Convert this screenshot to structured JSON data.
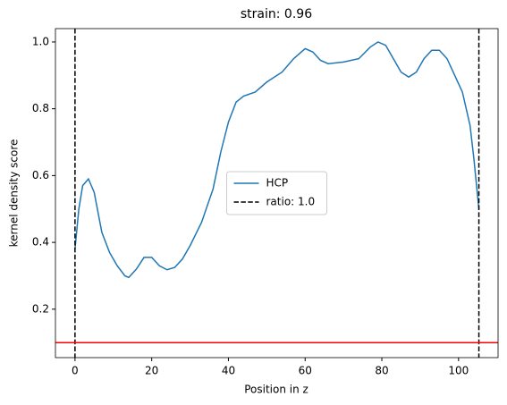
{
  "chart_data": {
    "type": "line",
    "title": "strain: 0.96",
    "x_label": "Position in z",
    "y_label": "kernel density score",
    "series": [
      {
        "name": "HCP",
        "color": "#1f77b4",
        "x": [
          0,
          1,
          2,
          3.5,
          5,
          7,
          9,
          11,
          13,
          14,
          16,
          18,
          20,
          22,
          24,
          26,
          28,
          30,
          33,
          36,
          38,
          40,
          42,
          44,
          47,
          50,
          54,
          57,
          60,
          62,
          64,
          66,
          70,
          74,
          77,
          79,
          81,
          83,
          85,
          87,
          89,
          91,
          93,
          95,
          97,
          99,
          101,
          103,
          104,
          105.3
        ],
        "values": [
          0.38,
          0.5,
          0.57,
          0.59,
          0.55,
          0.43,
          0.37,
          0.33,
          0.3,
          0.295,
          0.32,
          0.355,
          0.355,
          0.33,
          0.318,
          0.325,
          0.35,
          0.39,
          0.46,
          0.56,
          0.67,
          0.76,
          0.82,
          0.838,
          0.85,
          0.88,
          0.91,
          0.95,
          0.98,
          0.97,
          0.945,
          0.935,
          0.94,
          0.95,
          0.985,
          1.0,
          0.99,
          0.95,
          0.91,
          0.895,
          0.91,
          0.95,
          0.975,
          0.975,
          0.95,
          0.9,
          0.85,
          0.75,
          0.65,
          0.5
        ]
      }
    ],
    "vlines": {
      "name": "ratio: 1.0",
      "color": "#000000",
      "values": [
        0,
        105.3
      ]
    },
    "hline": {
      "color": "#ff0000",
      "value": 0.1
    },
    "xlim": [
      -5.1,
      110.3
    ],
    "ylim": [
      0.055,
      1.04
    ],
    "xticks": [
      0,
      20,
      40,
      60,
      80,
      100
    ],
    "yticks": [
      0.2,
      0.4,
      0.6,
      0.8,
      {
        "value": 1.0,
        "label": "1.0"
      }
    ],
    "legend": "center"
  }
}
